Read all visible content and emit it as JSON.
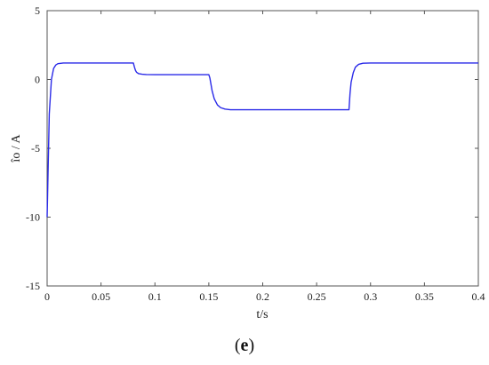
{
  "chart_data": {
    "type": "line",
    "xlabel": "t/s",
    "ylabel": "îo / A",
    "xlim": [
      0,
      0.4
    ],
    "ylim": [
      -15,
      5
    ],
    "xticks": [
      "0",
      "0.05",
      "0.1",
      "0.15",
      "0.2",
      "0.25",
      "0.3",
      "0.35",
      "0.4"
    ],
    "yticks": [
      "5",
      "0",
      "-5",
      "-10",
      "-15"
    ],
    "grid": false,
    "line_color": "#2a2ae8",
    "series": [
      {
        "x": [
          0,
          0.002,
          0.004,
          0.006,
          0.008,
          0.01,
          0.015,
          0.02,
          0.08,
          0.081,
          0.082,
          0.083,
          0.085,
          0.088,
          0.092,
          0.1,
          0.15,
          0.151,
          0.153,
          0.155,
          0.158,
          0.161,
          0.165,
          0.17,
          0.28,
          0.281,
          0.282,
          0.284,
          0.286,
          0.289,
          0.293,
          0.3,
          0.4
        ],
        "y": [
          -10,
          -2.5,
          0.0,
          0.8,
          1.05,
          1.15,
          1.2,
          1.2,
          1.2,
          0.9,
          0.65,
          0.52,
          0.42,
          0.38,
          0.36,
          0.35,
          0.35,
          0.1,
          -0.8,
          -1.4,
          -1.85,
          -2.05,
          -2.15,
          -2.2,
          -2.2,
          -1.0,
          -0.2,
          0.5,
          0.9,
          1.1,
          1.18,
          1.2,
          1.2
        ]
      }
    ]
  },
  "caption": {
    "open": "(",
    "letter": "e",
    "close": ")"
  }
}
